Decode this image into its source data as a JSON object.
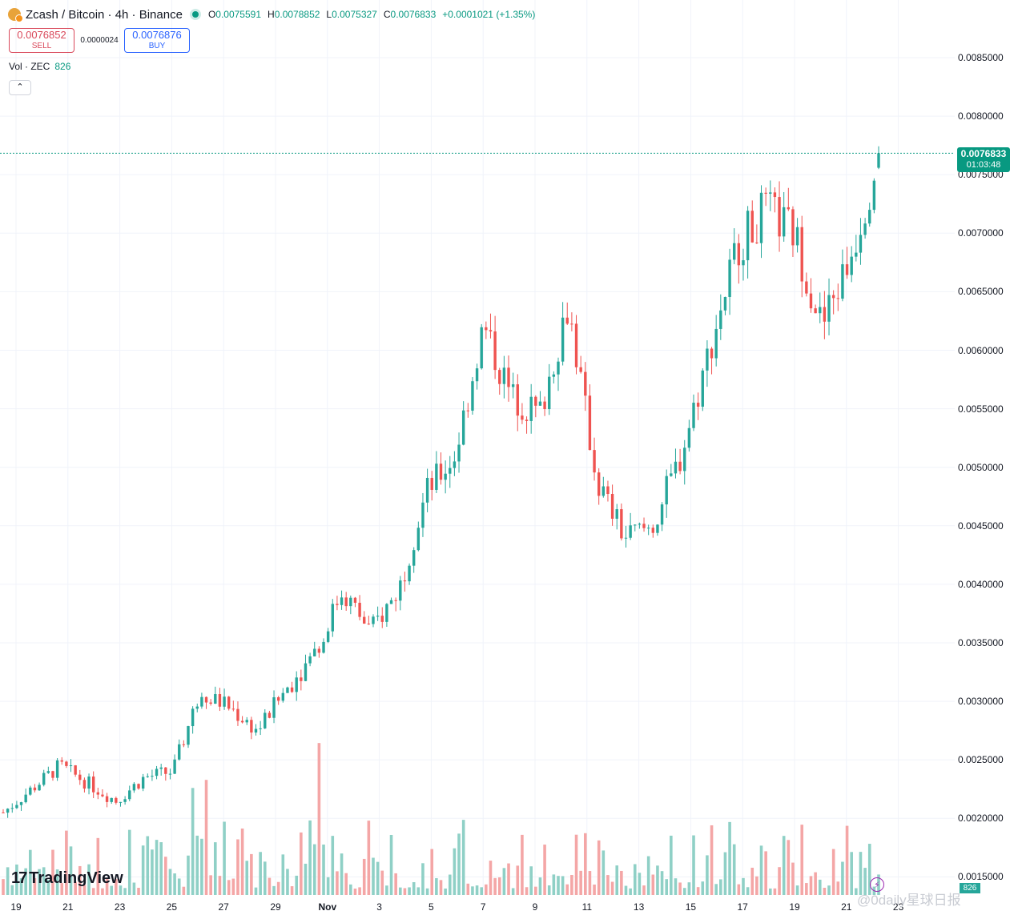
{
  "header": {
    "symbol": "Zcash / Bitcoin · 4h · Binance",
    "open_label": "O",
    "open_value": "0.0075591",
    "high_label": "H",
    "high_value": "0.0078852",
    "low_label": "L",
    "low_value": "0.0075327",
    "close_label": "C",
    "close_value": "0.0076833",
    "change": "+0.0001021 (+1.35%)"
  },
  "trade": {
    "sell_price": "0.0076852",
    "sell_label": "SELL",
    "spread": "0.0000024",
    "buy_price": "0.0076876",
    "buy_label": "BUY"
  },
  "volume": {
    "label": "Vol · ZEC",
    "value": "826",
    "tag": "826"
  },
  "collapse_icon": "chevron-up-icon",
  "last_price": {
    "value": "0.0076833",
    "countdown": "01:03:48"
  },
  "watermark": "@0daily星球日报",
  "brand": "TradingView",
  "colors": {
    "up": "#26a69a",
    "down": "#ef5350",
    "up_vol": "#8fd0c6",
    "down_vol": "#f4a6a6",
    "price_line": "#089981",
    "grid": "#f0f3fa"
  },
  "chart_data": {
    "type": "candlestick",
    "y_axis": [
      "0.0085000",
      "0.0080000",
      "0.0075000",
      "0.0070000",
      "0.0065000",
      "0.0060000",
      "0.0055000",
      "0.0050000",
      "0.0045000",
      "0.0040000",
      "0.0035000",
      "0.0030000",
      "0.0025000",
      "0.0020000",
      "0.0015000"
    ],
    "x_axis": [
      "19",
      "21",
      "23",
      "25",
      "27",
      "29",
      "Nov",
      "3",
      "5",
      "7",
      "9",
      "11",
      "13",
      "15",
      "17",
      "19",
      "21",
      "23"
    ],
    "ylim": [
      0.0012,
      0.0087
    ],
    "interval": "4h",
    "close_path": [
      [
        "19",
        0.00205
      ],
      [
        "21",
        0.00225
      ],
      [
        "22",
        0.00245
      ],
      [
        "23",
        0.0023
      ],
      [
        "24",
        0.00215
      ],
      [
        "25",
        0.00235
      ],
      [
        "26",
        0.0024
      ],
      [
        "27",
        0.0031
      ],
      [
        "28",
        0.00295
      ],
      [
        "29",
        0.00275
      ],
      [
        "30",
        0.0031
      ],
      [
        "Nov",
        0.0034
      ],
      [
        "2",
        0.00395
      ],
      [
        "3",
        0.0036
      ],
      [
        "4",
        0.00395
      ],
      [
        "5",
        0.0048
      ],
      [
        "6",
        0.0051
      ],
      [
        "7",
        0.0062
      ],
      [
        "8",
        0.0056
      ],
      [
        "9",
        0.00545
      ],
      [
        "10",
        0.0064
      ],
      [
        "11",
        0.0049
      ],
      [
        "12",
        0.0044
      ],
      [
        "13",
        0.0045
      ],
      [
        "14",
        0.0051
      ],
      [
        "15",
        0.006
      ],
      [
        "16",
        0.0069
      ],
      [
        "17",
        0.0072
      ],
      [
        "18",
        0.007
      ],
      [
        "19",
        0.0062
      ],
      [
        "20",
        0.0068
      ],
      [
        "21",
        0.00768
      ]
    ],
    "grid": true
  }
}
